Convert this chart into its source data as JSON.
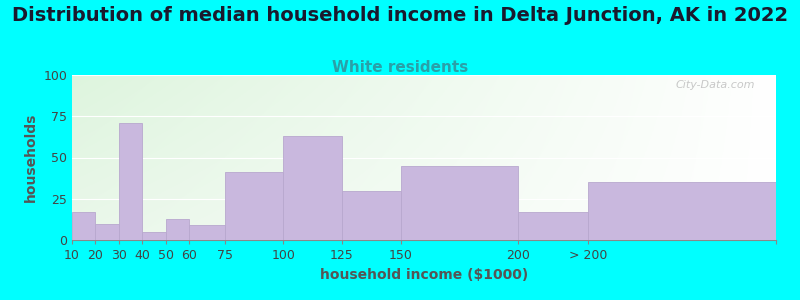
{
  "title": "Distribution of median household income in Delta Junction, AK in 2022",
  "subtitle": "White residents",
  "xlabel": "household income ($1000)",
  "ylabel": "households",
  "background_outer": "#00FFFF",
  "bar_color": "#C9B8DE",
  "bar_edge_color": "#B8A8CE",
  "bin_edges": [
    10,
    20,
    30,
    40,
    50,
    60,
    75,
    100,
    125,
    150,
    200,
    230,
    310
  ],
  "tick_positions": [
    10,
    20,
    30,
    40,
    50,
    60,
    75,
    100,
    125,
    150,
    200,
    230,
    310
  ],
  "tick_labels": [
    "10",
    "20",
    "30",
    "40",
    "50",
    "60",
    "75",
    "100",
    "125",
    "150",
    "200",
    "> 200",
    ""
  ],
  "values": [
    17,
    10,
    71,
    5,
    13,
    9,
    41,
    63,
    30,
    45,
    17,
    35
  ],
  "ylim": [
    0,
    100
  ],
  "yticks": [
    0,
    25,
    50,
    75,
    100
  ],
  "title_fontsize": 14,
  "subtitle_fontsize": 11,
  "subtitle_color": "#2AA0A8",
  "axis_label_fontsize": 10,
  "tick_fontsize": 9,
  "title_color": "#1a1a2e",
  "watermark": "City-Data.com"
}
